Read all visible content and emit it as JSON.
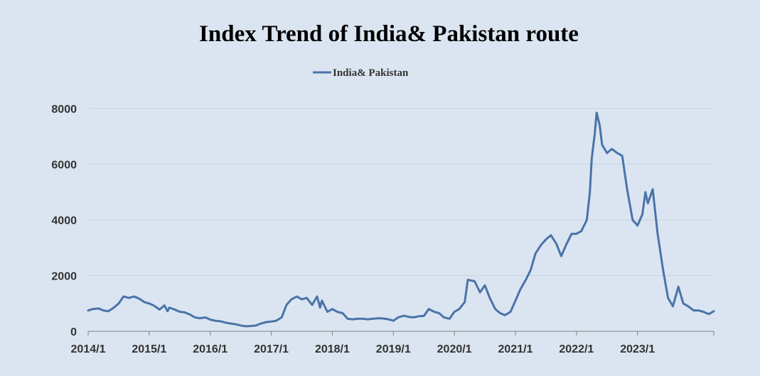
{
  "chart_data": {
    "type": "line",
    "title": "Index Trend of India& Pakistan route",
    "xlabel": "",
    "ylabel": "",
    "ylim": [
      0,
      8000
    ],
    "yticks": [
      "0",
      "2000",
      "4000",
      "6000",
      "8000"
    ],
    "xticks": [
      "2014/1",
      "2015/1",
      "2016/1",
      "2017/1",
      "2018/1",
      "2019/1",
      "2020/1",
      "2021/1",
      "2022/1",
      "2023/1"
    ],
    "grid": "horizontal",
    "legend_position": "top-center",
    "line_color": "#4a73a8",
    "series": [
      {
        "name": "India& Pakistan",
        "points": [
          [
            2014.0,
            750
          ],
          [
            2014.08,
            800
          ],
          [
            2014.17,
            820
          ],
          [
            2014.25,
            750
          ],
          [
            2014.33,
            720
          ],
          [
            2014.42,
            850
          ],
          [
            2014.5,
            1000
          ],
          [
            2014.58,
            1250
          ],
          [
            2014.67,
            1200
          ],
          [
            2014.75,
            1250
          ],
          [
            2014.83,
            1180
          ],
          [
            2014.92,
            1050
          ],
          [
            2015.0,
            1000
          ],
          [
            2015.08,
            920
          ],
          [
            2015.17,
            780
          ],
          [
            2015.25,
            930
          ],
          [
            2015.3,
            720
          ],
          [
            2015.33,
            850
          ],
          [
            2015.42,
            780
          ],
          [
            2015.5,
            700
          ],
          [
            2015.58,
            680
          ],
          [
            2015.67,
            600
          ],
          [
            2015.75,
            500
          ],
          [
            2015.83,
            470
          ],
          [
            2015.92,
            500
          ],
          [
            2016.0,
            420
          ],
          [
            2016.08,
            380
          ],
          [
            2016.17,
            360
          ],
          [
            2016.25,
            310
          ],
          [
            2016.33,
            280
          ],
          [
            2016.42,
            250
          ],
          [
            2016.5,
            210
          ],
          [
            2016.58,
            180
          ],
          [
            2016.67,
            190
          ],
          [
            2016.75,
            210
          ],
          [
            2016.83,
            280
          ],
          [
            2016.92,
            330
          ],
          [
            2017.0,
            350
          ],
          [
            2017.08,
            380
          ],
          [
            2017.17,
            500
          ],
          [
            2017.25,
            950
          ],
          [
            2017.33,
            1150
          ],
          [
            2017.42,
            1250
          ],
          [
            2017.5,
            1150
          ],
          [
            2017.58,
            1200
          ],
          [
            2017.67,
            950
          ],
          [
            2017.75,
            1250
          ],
          [
            2017.8,
            850
          ],
          [
            2017.83,
            1100
          ],
          [
            2017.92,
            700
          ],
          [
            2018.0,
            800
          ],
          [
            2018.08,
            700
          ],
          [
            2018.17,
            650
          ],
          [
            2018.25,
            450
          ],
          [
            2018.33,
            430
          ],
          [
            2018.42,
            450
          ],
          [
            2018.5,
            450
          ],
          [
            2018.58,
            430
          ],
          [
            2018.67,
            450
          ],
          [
            2018.75,
            470
          ],
          [
            2018.83,
            460
          ],
          [
            2018.92,
            430
          ],
          [
            2019.0,
            380
          ],
          [
            2019.08,
            500
          ],
          [
            2019.17,
            560
          ],
          [
            2019.25,
            520
          ],
          [
            2019.33,
            500
          ],
          [
            2019.42,
            540
          ],
          [
            2019.5,
            550
          ],
          [
            2019.58,
            800
          ],
          [
            2019.67,
            700
          ],
          [
            2019.75,
            650
          ],
          [
            2019.83,
            500
          ],
          [
            2019.92,
            450
          ],
          [
            2020.0,
            700
          ],
          [
            2020.08,
            800
          ],
          [
            2020.17,
            1050
          ],
          [
            2020.22,
            1850
          ],
          [
            2020.33,
            1800
          ],
          [
            2020.42,
            1400
          ],
          [
            2020.5,
            1650
          ],
          [
            2020.58,
            1200
          ],
          [
            2020.67,
            800
          ],
          [
            2020.75,
            650
          ],
          [
            2020.83,
            580
          ],
          [
            2020.92,
            700
          ],
          [
            2021.0,
            1100
          ],
          [
            2021.08,
            1500
          ],
          [
            2021.17,
            1850
          ],
          [
            2021.25,
            2200
          ],
          [
            2021.33,
            2800
          ],
          [
            2021.42,
            3100
          ],
          [
            2021.5,
            3300
          ],
          [
            2021.58,
            3450
          ],
          [
            2021.67,
            3150
          ],
          [
            2021.75,
            2700
          ],
          [
            2021.83,
            3100
          ],
          [
            2021.92,
            3500
          ],
          [
            2022.0,
            3500
          ],
          [
            2022.08,
            3600
          ],
          [
            2022.17,
            4000
          ],
          [
            2022.22,
            5000
          ],
          [
            2022.25,
            6200
          ],
          [
            2022.3,
            7100
          ],
          [
            2022.33,
            7850
          ],
          [
            2022.38,
            7400
          ],
          [
            2022.42,
            6700
          ],
          [
            2022.5,
            6400
          ],
          [
            2022.58,
            6550
          ],
          [
            2022.67,
            6400
          ],
          [
            2022.75,
            6300
          ],
          [
            2022.83,
            5100
          ],
          [
            2022.92,
            4000
          ],
          [
            2023.0,
            3800
          ],
          [
            2023.08,
            4200
          ],
          [
            2023.13,
            5000
          ],
          [
            2023.17,
            4600
          ],
          [
            2023.25,
            5100
          ],
          [
            2023.33,
            3500
          ],
          [
            2023.42,
            2200
          ],
          [
            2023.5,
            1200
          ],
          [
            2023.58,
            900
          ],
          [
            2023.67,
            1600
          ],
          [
            2023.75,
            1000
          ],
          [
            2023.83,
            900
          ],
          [
            2023.92,
            750
          ],
          [
            2024.0,
            750
          ],
          [
            2024.08,
            700
          ],
          [
            2024.17,
            620
          ],
          [
            2024.25,
            720
          ]
        ]
      }
    ]
  }
}
